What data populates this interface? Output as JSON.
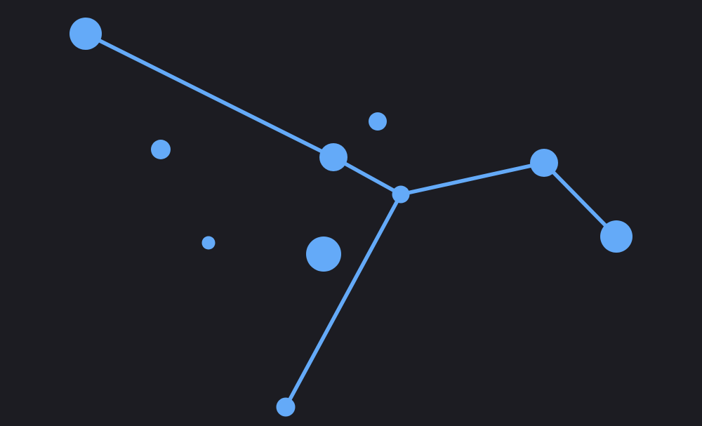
{
  "colors": {
    "background": "#1c1c22",
    "accent": "#64aaf8"
  },
  "diagram": {
    "type": "constellation",
    "stars": [
      {
        "id": "s1",
        "connected": true
      },
      {
        "id": "s2",
        "connected": true
      },
      {
        "id": "s3",
        "connected": true
      },
      {
        "id": "s4",
        "connected": true
      },
      {
        "id": "s5",
        "connected": true
      },
      {
        "id": "s6",
        "connected": true
      },
      {
        "id": "s7",
        "connected": false
      },
      {
        "id": "s8",
        "connected": false
      },
      {
        "id": "s9",
        "connected": false
      },
      {
        "id": "s10",
        "connected": false
      }
    ],
    "edges": [
      {
        "from": "s1",
        "to": "s2"
      },
      {
        "from": "s2",
        "to": "s3"
      },
      {
        "from": "s3",
        "to": "s4"
      },
      {
        "from": "s4",
        "to": "s5"
      },
      {
        "from": "s3",
        "to": "s6"
      }
    ]
  }
}
